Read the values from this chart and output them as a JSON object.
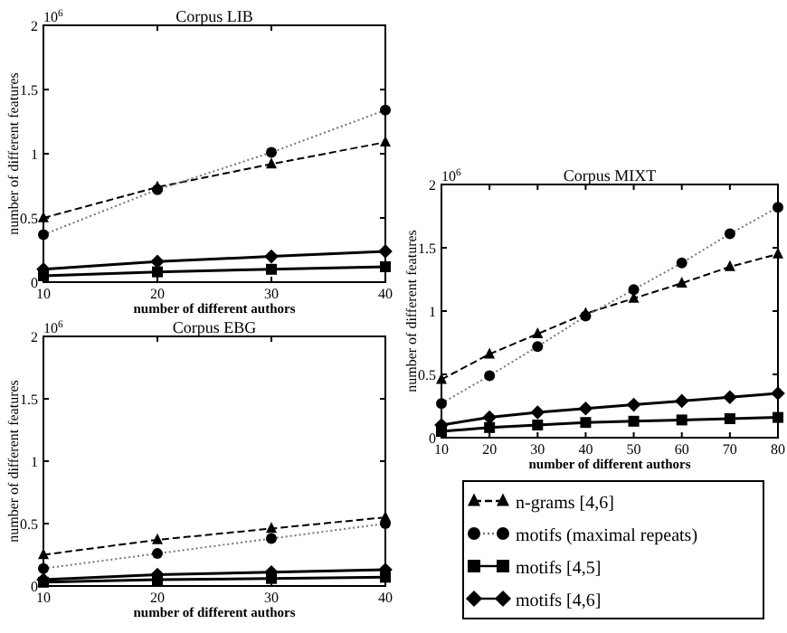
{
  "chart_data": [
    {
      "type": "line",
      "title": "Corpus LIB",
      "xlabel": "number of different authors",
      "ylabel": "number of different features",
      "annotations": [
        "10$^{6}$"
      ],
      "x": [
        10,
        20,
        30,
        40
      ],
      "xlim": [
        10,
        40
      ],
      "xticks": [
        10,
        20,
        30,
        40
      ],
      "ylim": [
        0,
        2
      ],
      "yticks": [
        0,
        0.5,
        1,
        1.5,
        2
      ],
      "grid": false,
      "legend": false,
      "series": [
        {
          "color": "#000000",
          "marker": "triangle",
          "line_style": "dashed",
          "values": [
            0.5,
            0.74,
            0.92,
            1.09
          ]
        },
        {
          "color": "#000000",
          "marker": "circle",
          "line_style": "dotted",
          "values": [
            0.37,
            0.72,
            1.01,
            1.34
          ]
        },
        {
          "color": "#000000",
          "marker": "square",
          "line_style": "solid",
          "values": [
            0.05,
            0.08,
            0.1,
            0.12
          ]
        },
        {
          "color": "#000000",
          "marker": "diamond",
          "line_style": "solid",
          "values": [
            0.1,
            0.16,
            0.2,
            0.24
          ]
        }
      ]
    },
    {
      "type": "line",
      "title": "Corpus EBG",
      "xlabel": "number of different authors",
      "ylabel": "number of different features",
      "annotations": [
        "10$^{6}$"
      ],
      "x": [
        10,
        20,
        30,
        40
      ],
      "xlim": [
        10,
        40
      ],
      "xticks": [
        10,
        20,
        30,
        40
      ],
      "ylim": [
        0,
        2
      ],
      "yticks": [
        0,
        0.5,
        1,
        1.5,
        2
      ],
      "grid": false,
      "legend": false,
      "series": [
        {
          "color": "#000000",
          "marker": "triangle",
          "line_style": "dashed",
          "values": [
            0.25,
            0.37,
            0.46,
            0.55
          ]
        },
        {
          "color": "#000000",
          "marker": "circle",
          "line_style": "dotted",
          "values": [
            0.14,
            0.26,
            0.38,
            0.5
          ]
        },
        {
          "color": "#000000",
          "marker": "square",
          "line_style": "solid",
          "values": [
            0.03,
            0.05,
            0.06,
            0.07
          ]
        },
        {
          "color": "#000000",
          "marker": "diamond",
          "line_style": "solid",
          "values": [
            0.05,
            0.09,
            0.11,
            0.13
          ]
        }
      ]
    },
    {
      "type": "line",
      "title": "Corpus MIXT",
      "xlabel": "number of different authors",
      "ylabel": "number of different features",
      "annotations": [
        "10$^{6}$"
      ],
      "x": [
        10,
        20,
        30,
        40,
        50,
        60,
        70,
        80
      ],
      "xlim": [
        10,
        80
      ],
      "xticks": [
        10,
        20,
        30,
        40,
        50,
        60,
        70,
        80
      ],
      "ylim": [
        0,
        2
      ],
      "yticks": [
        0,
        0.5,
        1,
        1.5,
        2
      ],
      "grid": false,
      "legend": "bottom",
      "series": [
        {
          "name": "n-grams [4,6]",
          "color": "#000000",
          "marker": "triangle",
          "line_style": "dashed",
          "values": [
            0.46,
            0.66,
            0.82,
            0.98,
            1.1,
            1.22,
            1.35,
            1.45
          ]
        },
        {
          "name": "motifs (maximal repeats)",
          "color": "#000000",
          "marker": "circle",
          "line_style": "dotted",
          "values": [
            0.27,
            0.49,
            0.72,
            0.96,
            1.17,
            1.38,
            1.61,
            1.82
          ]
        },
        {
          "name": "motifs [4,5]",
          "color": "#000000",
          "marker": "square",
          "line_style": "solid",
          "values": [
            0.05,
            0.08,
            0.1,
            0.12,
            0.13,
            0.14,
            0.15,
            0.16
          ]
        },
        {
          "name": "motifs [4,6]",
          "color": "#000000",
          "marker": "diamond",
          "line_style": "solid",
          "values": [
            0.1,
            0.16,
            0.2,
            0.23,
            0.26,
            0.29,
            0.32,
            0.35
          ]
        }
      ]
    }
  ]
}
